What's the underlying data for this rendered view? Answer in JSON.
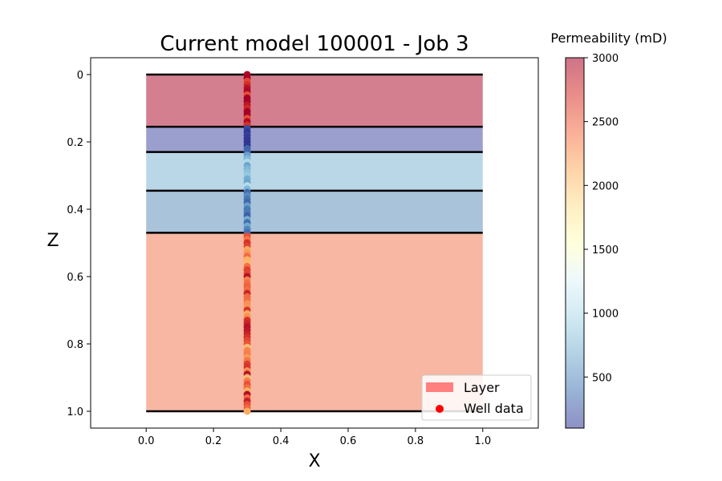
{
  "chart_data": {
    "type": "scatter",
    "title": "Current model 100001 - Job 3",
    "xlabel": "X",
    "ylabel": "Z",
    "xlim": [
      -0.165,
      1.165
    ],
    "ylim": [
      1.05,
      -0.05
    ],
    "y_inverted": true,
    "x_ticks": [
      "0.0",
      "0.2",
      "0.4",
      "0.6",
      "0.8",
      "1.0"
    ],
    "x_tick_values": [
      0.0,
      0.2,
      0.4,
      0.6,
      0.8,
      1.0
    ],
    "y_ticks": [
      "0",
      "0.2",
      "0.4",
      "0.6",
      "0.8",
      "1.0"
    ],
    "y_tick_values": [
      0.0,
      0.2,
      0.4,
      0.6,
      0.8,
      1.0
    ],
    "grid": false,
    "legend_placement": "lower-right",
    "legend": [
      {
        "label": "Layer",
        "kind": "patch",
        "color": "#ff7f7f"
      },
      {
        "label": "Well data",
        "kind": "marker",
        "color": "#ff0000"
      }
    ],
    "layers": [
      {
        "top": 0.0,
        "bottom": 0.155,
        "permeability": 2950,
        "color": "#d47f8f"
      },
      {
        "top": 0.155,
        "bottom": 0.23,
        "permeability": 120,
        "color": "#9a9fce"
      },
      {
        "top": 0.23,
        "bottom": 0.345,
        "permeability": 780,
        "color": "#bad7e8"
      },
      {
        "top": 0.345,
        "bottom": 0.47,
        "permeability": 480,
        "color": "#a9c3db"
      },
      {
        "top": 0.47,
        "bottom": 1.0,
        "permeability": 2480,
        "color": "#f7b7a2"
      }
    ],
    "layer_x_range": [
      0.0,
      1.0
    ],
    "layer_boundaries": [
      0.0,
      0.155,
      0.23,
      0.345,
      0.47,
      1.0
    ],
    "well": {
      "x": 0.3,
      "z_start": 0.0,
      "z_end": 1.0,
      "count": 101
    },
    "colorbar": {
      "title": "Permeability (mD)",
      "min": 100,
      "max": 3000,
      "ticks": [
        "500",
        "1000",
        "1500",
        "2000",
        "2500",
        "3000"
      ],
      "tick_values": [
        500,
        1000,
        1500,
        2000,
        2500,
        3000
      ],
      "colormap": "RdYlBu_r",
      "alpha": 0.55
    }
  }
}
